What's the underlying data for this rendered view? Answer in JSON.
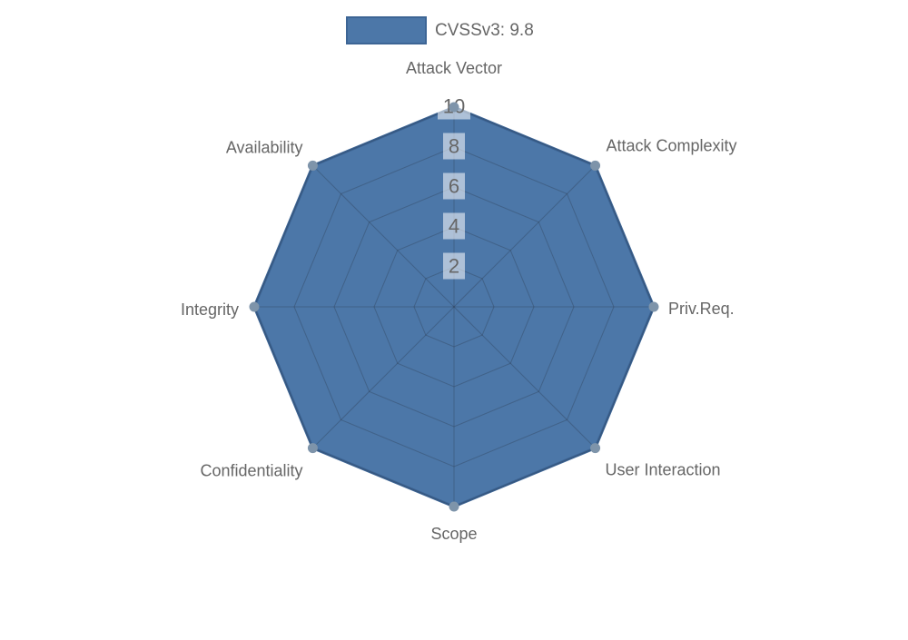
{
  "legend": {
    "label": "CVSSv3: 9.8"
  },
  "chart_data": {
    "type": "radar",
    "title": "",
    "categories": [
      "Attack Vector",
      "Attack Complexity",
      "Priv.Req.",
      "User Interaction",
      "Scope",
      "Confidentiality",
      "Integrity",
      "Availability"
    ],
    "series": [
      {
        "name": "CVSSv3: 9.8",
        "values": [
          10,
          10,
          10,
          10,
          10,
          10,
          10,
          10
        ]
      }
    ],
    "rmin": 0,
    "rmax": 10,
    "ticks": [
      2,
      4,
      6,
      8,
      10
    ],
    "grid": true,
    "legend_position": "top",
    "colors": {
      "fill": "#4c77a8",
      "border": "#3d6595",
      "point": "#7e94aa",
      "grid_line": "rgba(30,35,45,0.25)",
      "tick_backdrop": "rgba(255,255,255,0.55)",
      "text": "#666666"
    }
  }
}
